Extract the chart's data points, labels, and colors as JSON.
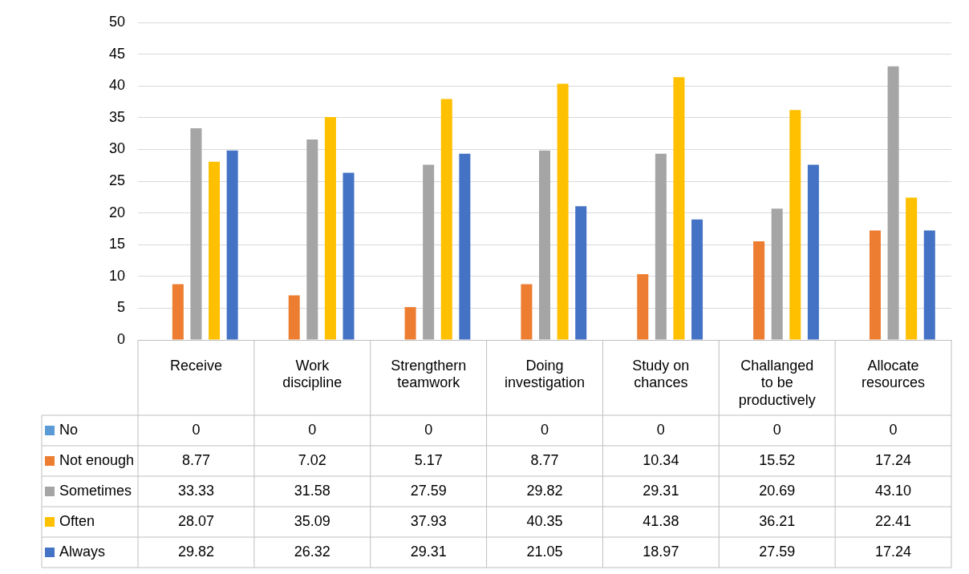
{
  "chart_data": {
    "type": "bar",
    "categories": [
      "Receive",
      "Work discipline",
      "Strengthern teamwork",
      "Doing investigation",
      "Study on chances",
      "Challanged to be productively",
      "Allocate resources"
    ],
    "series": [
      {
        "name": "No",
        "color": "#5b9bd5",
        "values": [
          0,
          0,
          0,
          0,
          0,
          0,
          0
        ],
        "value_labels": [
          "0",
          "0",
          "0",
          "0",
          "0",
          "0",
          "0"
        ]
      },
      {
        "name": "Not enough",
        "color": "#ed7d31",
        "values": [
          8.77,
          7.02,
          5.17,
          8.77,
          10.34,
          15.52,
          17.24
        ],
        "value_labels": [
          "8.77",
          "7.02",
          "5.17",
          "8.77",
          "10.34",
          "15.52",
          "17.24"
        ]
      },
      {
        "name": "Sometimes",
        "color": "#a5a5a5",
        "values": [
          33.33,
          31.58,
          27.59,
          29.82,
          29.31,
          20.69,
          43.1
        ],
        "value_labels": [
          "33.33",
          "31.58",
          "27.59",
          "29.82",
          "29.31",
          "20.69",
          "43.10"
        ]
      },
      {
        "name": "Often",
        "color": "#ffc000",
        "values": [
          28.07,
          35.09,
          37.93,
          40.35,
          41.38,
          36.21,
          22.41
        ],
        "value_labels": [
          "28.07",
          "35.09",
          "37.93",
          "40.35",
          "41.38",
          "36.21",
          "22.41"
        ]
      },
      {
        "name": "Always",
        "color": "#4472c4",
        "values": [
          29.82,
          26.32,
          29.31,
          21.05,
          18.97,
          27.59,
          17.24
        ],
        "value_labels": [
          "29.82",
          "26.32",
          "29.31",
          "21.05",
          "18.97",
          "27.59",
          "17.24"
        ]
      }
    ],
    "ylim": [
      0,
      50
    ],
    "yticks": [
      0,
      5,
      10,
      15,
      20,
      25,
      30,
      35,
      40,
      45,
      50
    ],
    "grid": "y",
    "legend": "bottom left"
  }
}
